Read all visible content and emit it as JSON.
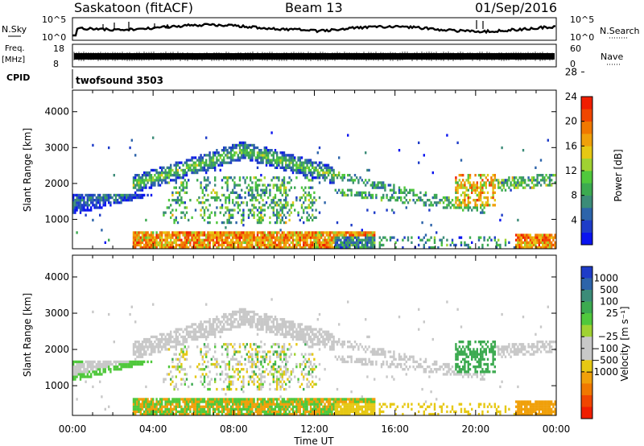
{
  "header": {
    "station": "Saskatoon (fitACF)",
    "beam": "Beam 13",
    "date": "01/Sep/2016"
  },
  "small_panels": {
    "nsky_label": "N.Sky",
    "nsky_ticks": [
      "10^5",
      "10^0"
    ],
    "nsearch_ticks": [
      "10^5",
      "10^0"
    ],
    "nsearch_label": "N.Search",
    "freq_label_1": "Freq.",
    "freq_label_2": "[MHz]",
    "freq_ticks": [
      "18",
      "8"
    ],
    "nave_ticks": [
      "60",
      "0"
    ],
    "nave_label": "Nave",
    "cpid_label": "CPID",
    "cpid_value": "twofsound 3503"
  },
  "chart_data": [
    {
      "type": "heatmap",
      "name": "power",
      "ylabel": "Slant Range [km]",
      "yticks": [
        1000,
        2000,
        3000,
        4000
      ],
      "ylim": [
        180,
        4600
      ],
      "xticks": [
        "00:00",
        "04:00",
        "08:00",
        "12:00",
        "16:00",
        "20:00",
        "00:00"
      ],
      "xlim_hours": [
        0,
        24
      ],
      "colorbar": {
        "label": "Power [dB]",
        "ticks": [
          4,
          8,
          12,
          16,
          20,
          24,
          28
        ],
        "colors": [
          "#0a14f0",
          "#1e3cc8",
          "#2d64aa",
          "#3c8c78",
          "#3caa50",
          "#50c83c",
          "#a0d232",
          "#e6c814",
          "#f0a00a",
          "#f07800",
          "#f04600",
          "#f01e00"
        ]
      }
    },
    {
      "type": "heatmap",
      "name": "velocity",
      "ylabel": "Slant Range [km]",
      "yticks": [
        1000,
        2000,
        3000,
        4000
      ],
      "ylim": [
        180,
        4600
      ],
      "xticks": [
        "00:00",
        "04:00",
        "08:00",
        "12:00",
        "16:00",
        "20:00",
        "00:00"
      ],
      "xlabel": "Time UT",
      "xlim_hours": [
        0,
        24
      ],
      "colorbar": {
        "label": "Velocity [m s⁻¹]",
        "ticks": [
          "1000",
          "500",
          "100",
          "25",
          "−25",
          "−100",
          "−500",
          "−1000"
        ],
        "colors": [
          "#1e3cc8",
          "#2d64aa",
          "#3c8c78",
          "#3caa50",
          "#50c83c",
          "#a0d232",
          "#c8c8c8",
          "#c8c8c8",
          "#e6c814",
          "#f0a00a",
          "#f07800",
          "#f04600",
          "#f01e00"
        ]
      }
    }
  ]
}
